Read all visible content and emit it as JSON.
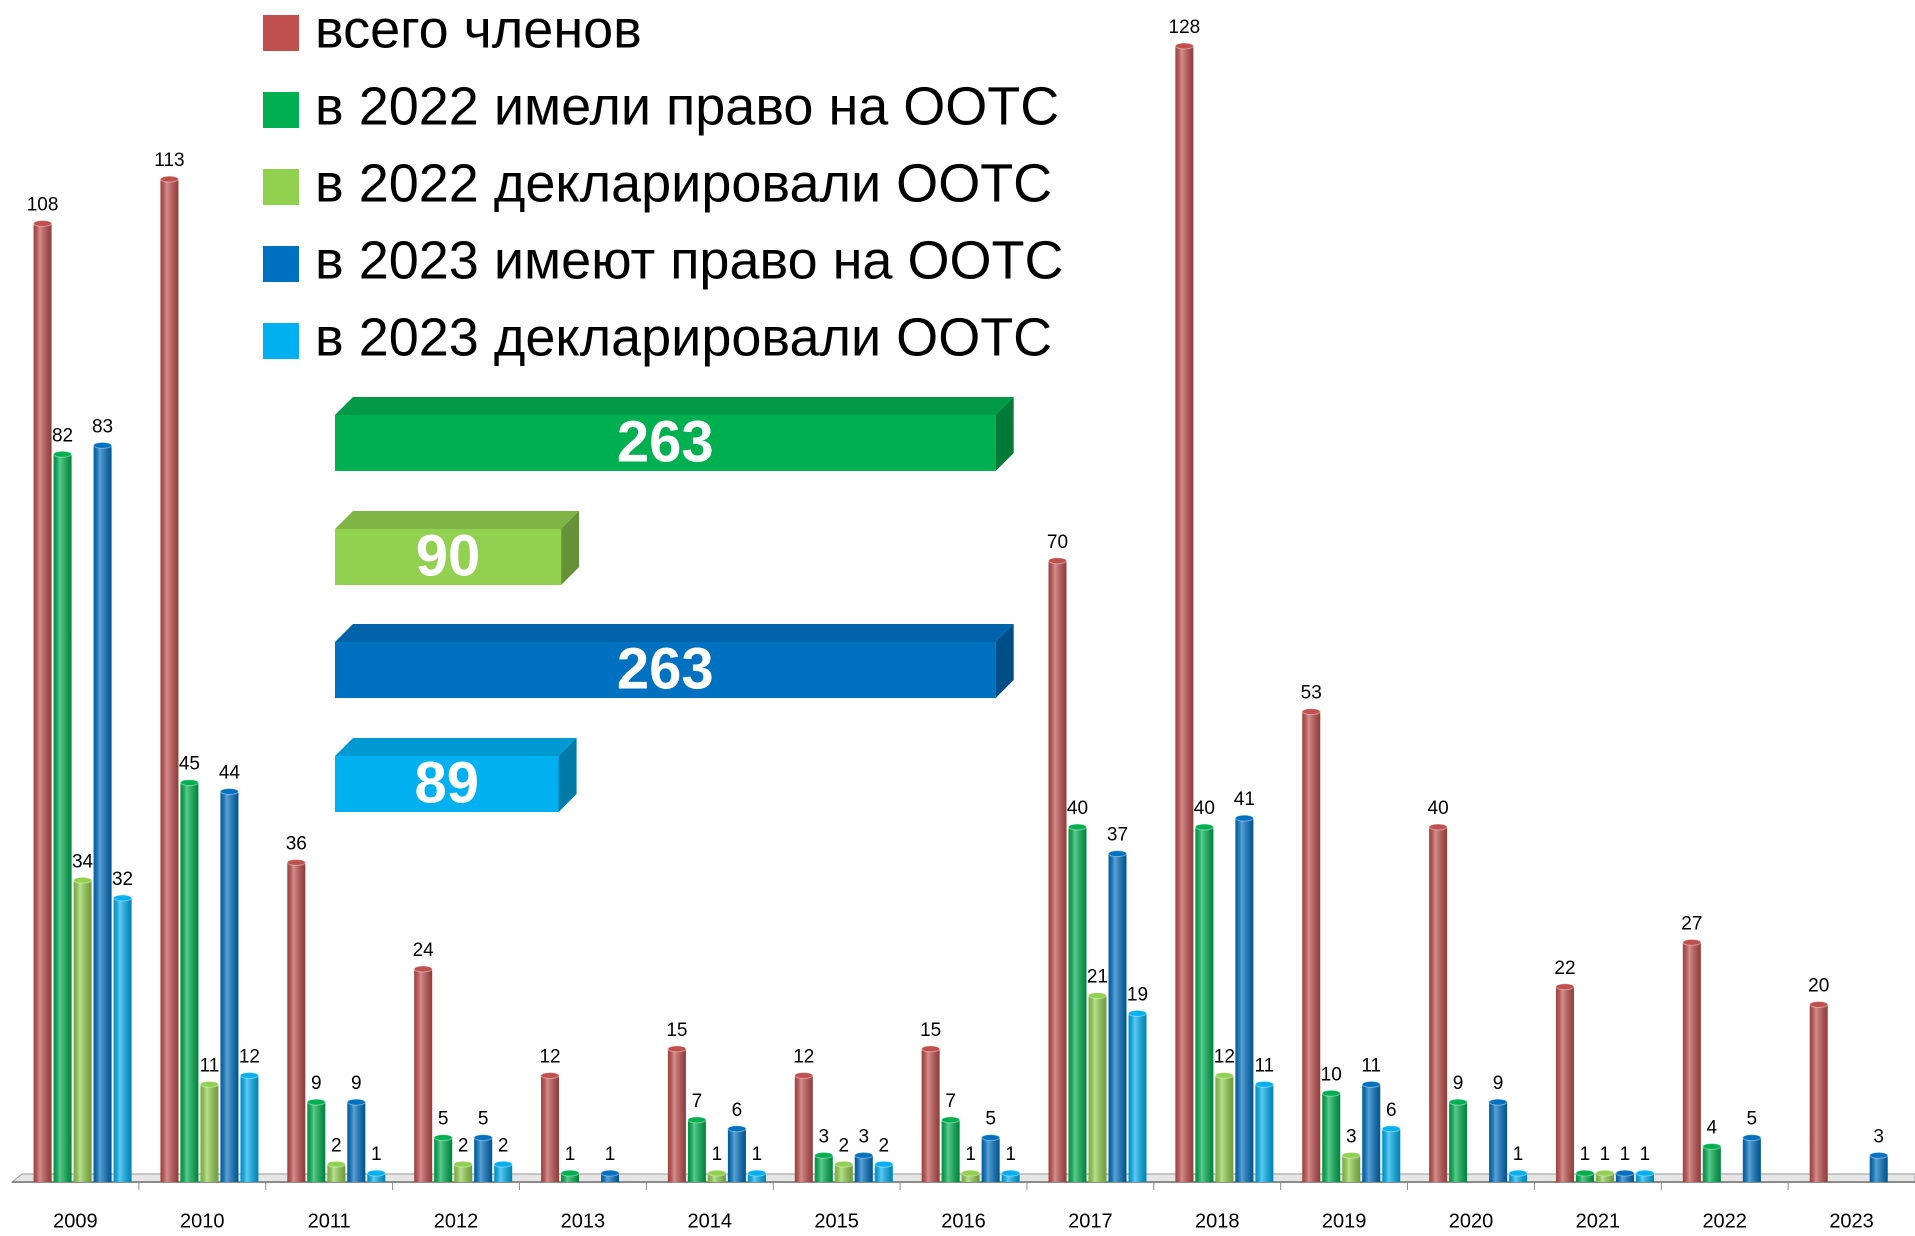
{
  "chart_data": {
    "type": "bar",
    "categories": [
      "2009",
      "2010",
      "2011",
      "2012",
      "2013",
      "2014",
      "2015",
      "2016",
      "2017",
      "2018",
      "2019",
      "2020",
      "2021",
      "2022",
      "2023"
    ],
    "series": [
      {
        "name": "всего членов",
        "color": "#c0504d",
        "values": [
          108,
          113,
          36,
          24,
          12,
          15,
          12,
          15,
          70,
          128,
          53,
          40,
          22,
          27,
          20
        ]
      },
      {
        "name": "в 2022 имели право на ООТС",
        "color": "#00b050",
        "values": [
          82,
          45,
          9,
          5,
          1,
          7,
          3,
          7,
          40,
          40,
          10,
          9,
          1,
          4,
          null
        ]
      },
      {
        "name": "в 2022 декларировали ООТС",
        "color": "#92d050",
        "values": [
          34,
          11,
          2,
          2,
          null,
          1,
          2,
          1,
          21,
          12,
          3,
          null,
          1,
          null,
          null
        ]
      },
      {
        "name": "в 2023 имеют право на ООТС",
        "color": "#0070c0",
        "values": [
          83,
          44,
          9,
          5,
          1,
          6,
          3,
          5,
          37,
          41,
          11,
          9,
          1,
          5,
          3
        ]
      },
      {
        "name": "в 2023 декларировали ООТС",
        "color": "#00b0f0",
        "values": [
          32,
          12,
          1,
          2,
          null,
          1,
          2,
          1,
          19,
          11,
          6,
          1,
          1,
          null,
          null
        ]
      }
    ],
    "ylim": [
      0,
      128
    ],
    "totals": {
      "values": [
        263,
        90,
        263,
        89
      ],
      "colors": [
        "#00b050",
        "#92d050",
        "#0070c0",
        "#00b0f0"
      ]
    },
    "legend": "top-center"
  }
}
